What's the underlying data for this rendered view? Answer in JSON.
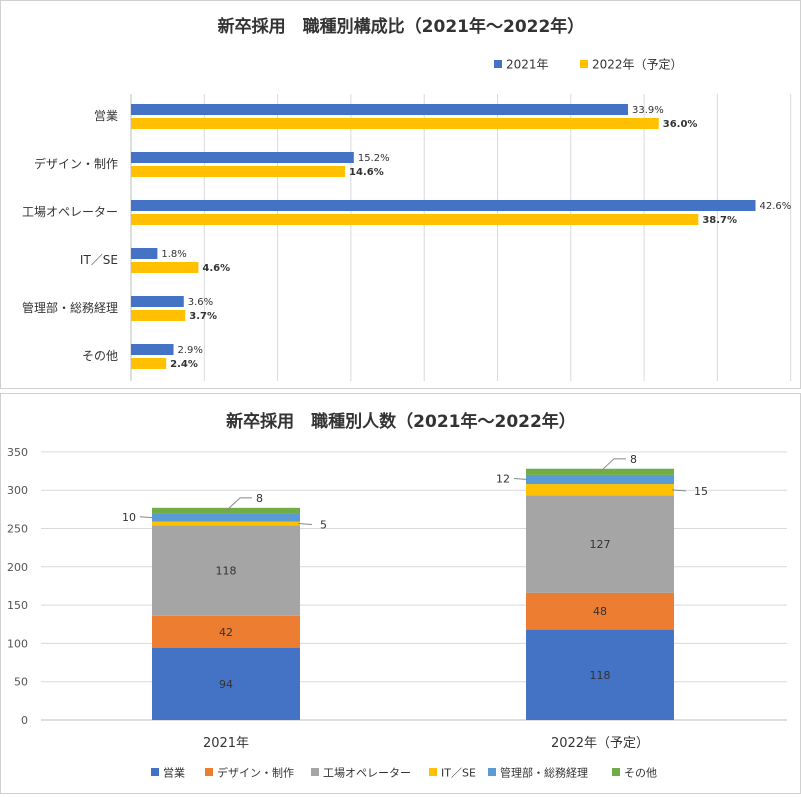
{
  "chart_data": [
    {
      "type": "bar",
      "orientation": "horizontal",
      "title": "新卒採用　職種別構成比（2021年～2022年）",
      "categories": [
        "営業",
        "デザイン・制作",
        "工場オペレーター",
        "IT／SE",
        "管理部・総務経理",
        "その他"
      ],
      "series": [
        {
          "name": "2021年",
          "color": "#4472C4",
          "values": [
            33.9,
            15.2,
            42.6,
            1.8,
            3.6,
            2.9
          ],
          "labels": [
            "33.9%",
            "15.2%",
            "42.6%",
            "1.8%",
            "3.6%",
            "2.9%"
          ]
        },
        {
          "name": "2022年（予定）",
          "color": "#FFC000",
          "values": [
            36.0,
            14.6,
            38.7,
            4.6,
            3.7,
            2.4
          ],
          "labels": [
            "36.0%",
            "14.6%",
            "38.7%",
            "4.6%",
            "3.7%",
            "2.4%"
          ]
        }
      ],
      "xlim": [
        0,
        45
      ],
      "grid": "vertical",
      "legend": "top-right"
    },
    {
      "type": "bar",
      "stacked": true,
      "title": "新卒採用　職種別人数（2021年～2022年）",
      "categories": [
        "2021年",
        "2022年（予定）"
      ],
      "series": [
        {
          "name": "営業",
          "color": "#4472C4",
          "values": [
            94,
            118
          ]
        },
        {
          "name": "デザイン・制作",
          "color": "#ED7D31",
          "values": [
            42,
            48
          ]
        },
        {
          "name": "工場オペレーター",
          "color": "#A5A5A5",
          "values": [
            118,
            127
          ]
        },
        {
          "name": "IT／SE",
          "color": "#FFC000",
          "values": [
            5,
            15
          ]
        },
        {
          "name": "管理部・総務経理",
          "color": "#5B9BD5",
          "values": [
            10,
            12
          ]
        },
        {
          "name": "その他",
          "color": "#70AD47",
          "values": [
            8,
            8
          ]
        }
      ],
      "ylim": [
        0,
        350
      ],
      "yticks": [
        "0",
        "50",
        "100",
        "150",
        "200",
        "250",
        "300",
        "350"
      ],
      "grid": "horizontal",
      "legend": "bottom"
    }
  ]
}
